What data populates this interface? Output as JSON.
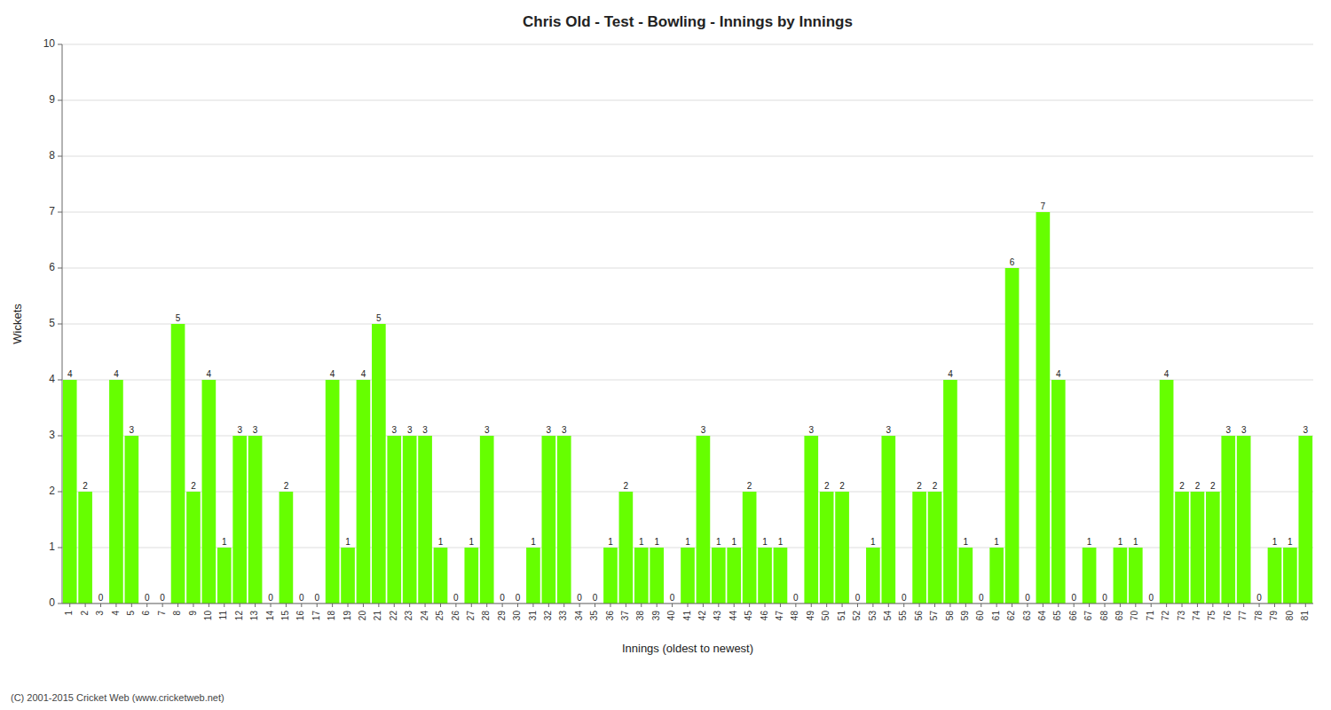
{
  "chart_data": {
    "type": "bar",
    "title": "Chris Old - Test - Bowling - Innings by Innings",
    "x_label": "Innings (oldest to newest)",
    "y_label": "Wickets",
    "categories": [
      "1",
      "2",
      "3",
      "4",
      "5",
      "6",
      "7",
      "8",
      "9",
      "10",
      "11",
      "12",
      "13",
      "14",
      "15",
      "16",
      "17",
      "18",
      "19",
      "20",
      "21",
      "22",
      "23",
      "24",
      "25",
      "26",
      "27",
      "28",
      "29",
      "30",
      "31",
      "32",
      "33",
      "34",
      "35",
      "36",
      "37",
      "38",
      "39",
      "40",
      "41",
      "42",
      "43",
      "44",
      "45",
      "46",
      "47",
      "48",
      "49",
      "50",
      "51",
      "52",
      "53",
      "54",
      "55",
      "56",
      "57",
      "58",
      "59",
      "60",
      "61",
      "62",
      "63",
      "64",
      "65",
      "66",
      "67",
      "68",
      "69",
      "70",
      "71",
      "72",
      "73",
      "74",
      "75",
      "76",
      "77",
      "78",
      "79",
      "80",
      "81"
    ],
    "values": [
      4,
      2,
      0,
      4,
      3,
      0,
      0,
      5,
      2,
      4,
      1,
      3,
      3,
      0,
      2,
      0,
      0,
      4,
      1,
      4,
      5,
      3,
      3,
      3,
      1,
      0,
      1,
      3,
      0,
      0,
      1,
      3,
      3,
      0,
      0,
      1,
      2,
      1,
      1,
      0,
      1,
      3,
      1,
      1,
      2,
      1,
      1,
      0,
      3,
      2,
      2,
      0,
      1,
      3,
      0,
      2,
      2,
      4,
      1,
      0,
      1,
      6,
      0,
      7,
      4,
      0,
      1,
      0,
      1,
      1,
      0,
      4,
      2,
      2,
      2,
      3,
      3,
      0,
      1,
      1,
      3
    ],
    "color": "#66FF00",
    "ylim": [
      0,
      10
    ],
    "yticks": [
      0,
      1,
      2,
      3,
      4,
      5,
      6,
      7,
      8,
      9,
      10
    ],
    "grid": true,
    "data_labels": true,
    "annotations": [
      "(C) 2001-2015 Cricket Web (www.cricketweb.net)"
    ]
  }
}
